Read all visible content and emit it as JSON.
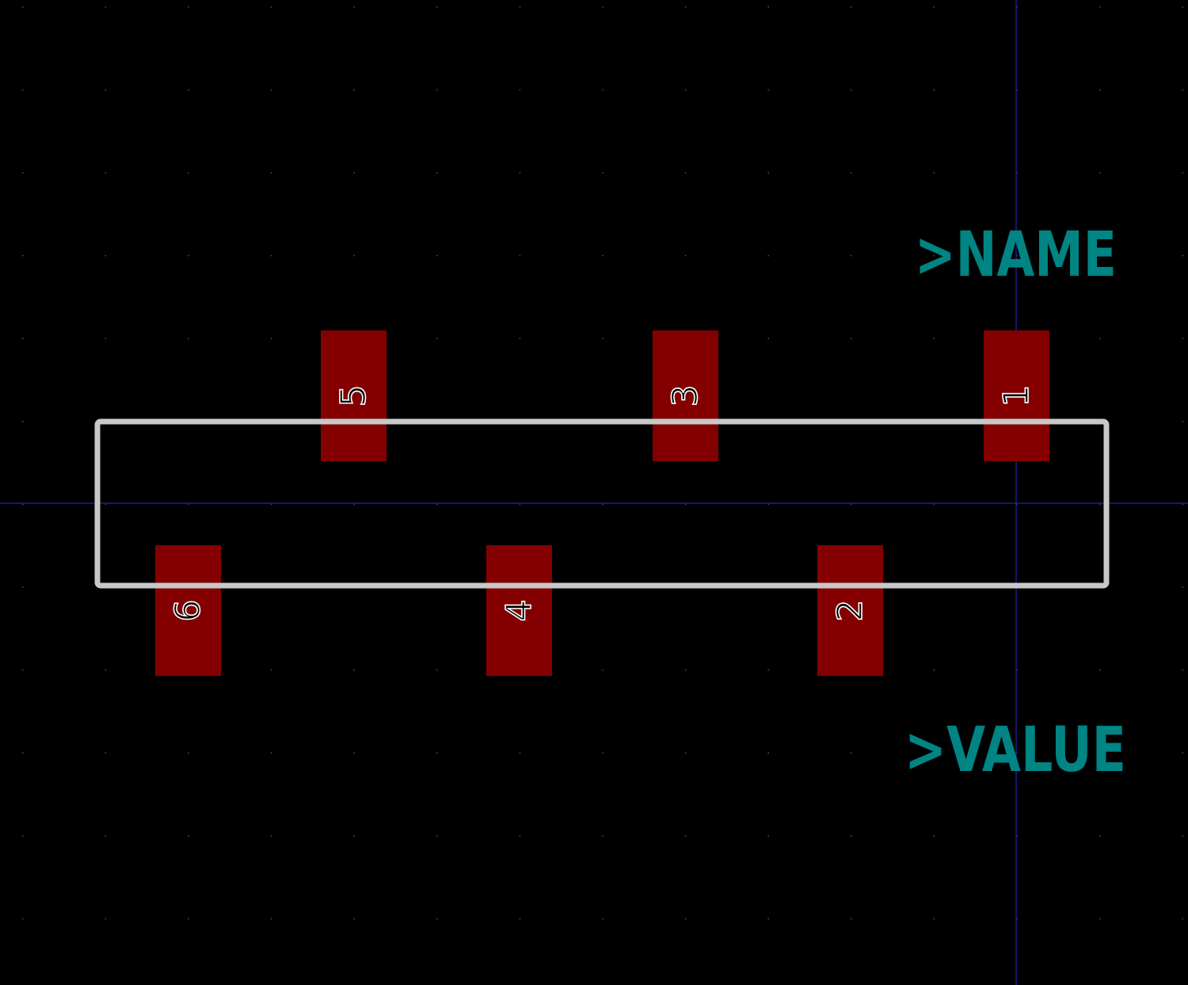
{
  "colors": {
    "background": "#000000",
    "grid_dot": "#4a4a4a",
    "axis": "#1e1e8c",
    "pad": "#840000",
    "pad_number": "#ffffff",
    "silkscreen": "#c8c8c8",
    "reference_text": "#008484"
  },
  "texts": {
    "name": ">NAME",
    "value": ">VALUE"
  },
  "pads": [
    {
      "number": "1",
      "row": "top"
    },
    {
      "number": "2",
      "row": "bottom"
    },
    {
      "number": "3",
      "row": "top"
    },
    {
      "number": "4",
      "row": "bottom"
    },
    {
      "number": "5",
      "row": "top"
    },
    {
      "number": "6",
      "row": "bottom"
    }
  ]
}
